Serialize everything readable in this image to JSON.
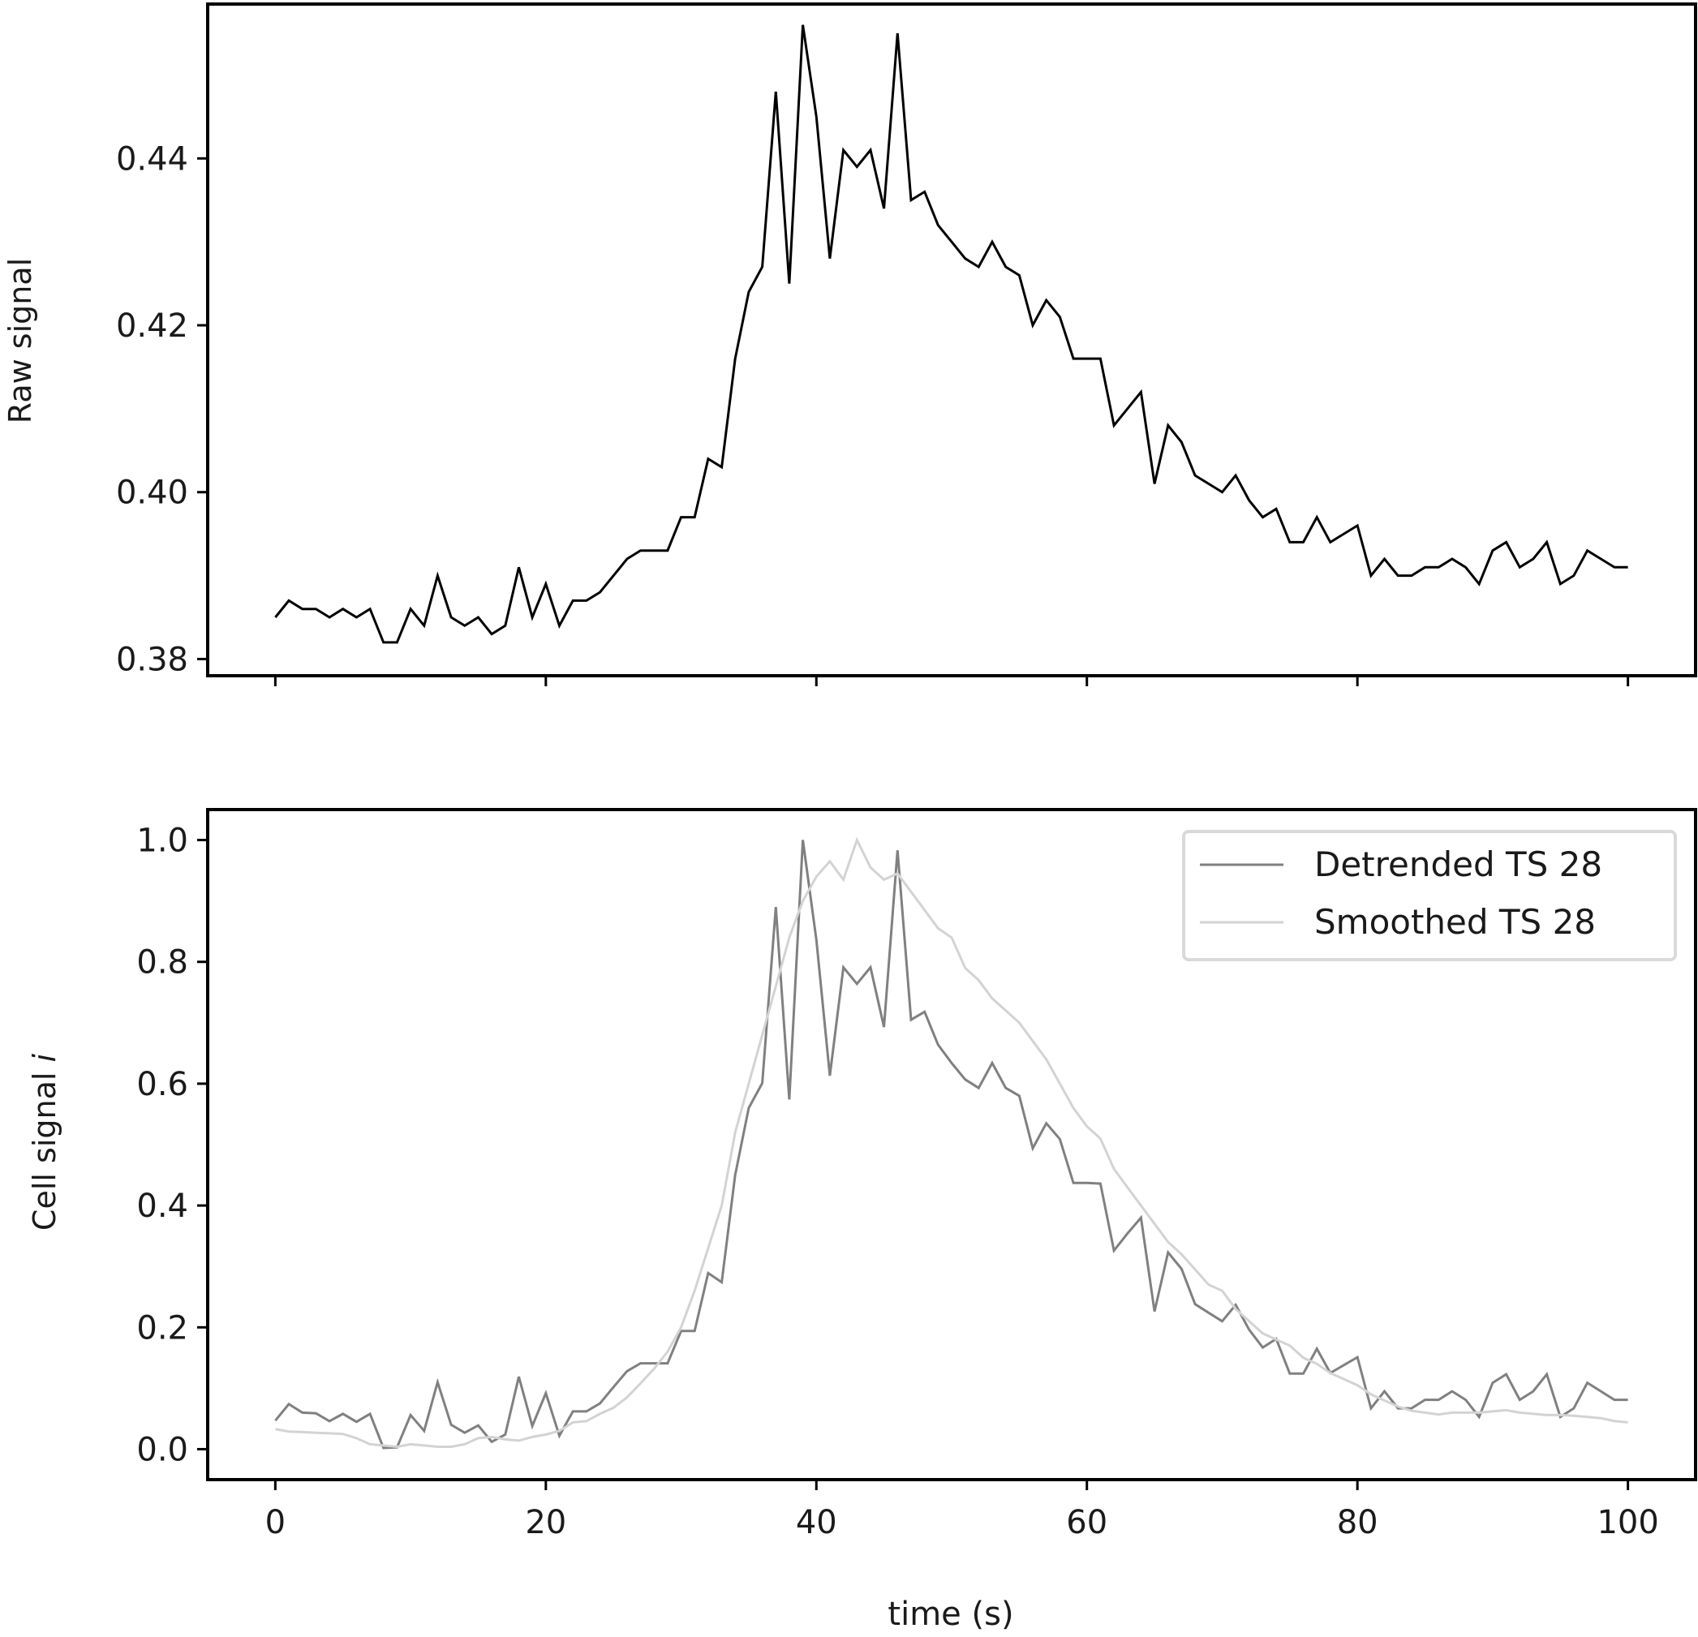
{
  "chart_data": [
    {
      "type": "line",
      "xlabel": "",
      "ylabel": "Raw signal",
      "xlim": [
        -5,
        105
      ],
      "ylim": [
        0.378,
        0.4585
      ],
      "xticks": [
        0,
        20,
        40,
        60,
        80,
        100
      ],
      "show_xticklabels": false,
      "yticks": [
        0.38,
        0.4,
        0.42,
        0.44
      ],
      "ytick_labels": [
        "0.38",
        "0.40",
        "0.42",
        "0.44"
      ],
      "grid": false,
      "series": [
        {
          "color": "#000000",
          "x": [
            0,
            1,
            2,
            3,
            4,
            5,
            6,
            7,
            8,
            9,
            10,
            11,
            12,
            13,
            14,
            15,
            16,
            17,
            18,
            19,
            20,
            21,
            22,
            23,
            24,
            25,
            26,
            27,
            28,
            29,
            30,
            31,
            32,
            33,
            34,
            35,
            36,
            37,
            38,
            39,
            40,
            41,
            42,
            43,
            44,
            45,
            46,
            47,
            48,
            49,
            50,
            51,
            52,
            53,
            54,
            55,
            56,
            57,
            58,
            59,
            60,
            61,
            62,
            63,
            64,
            65,
            66,
            67,
            68,
            69,
            70,
            71,
            72,
            73,
            74,
            75,
            76,
            77,
            78,
            79,
            80,
            81,
            82,
            83,
            84,
            85,
            86,
            87,
            88,
            89,
            90,
            91,
            92,
            93,
            94,
            95,
            96,
            97,
            98,
            99,
            100
          ],
          "values": [
            0.385,
            0.387,
            0.386,
            0.386,
            0.385,
            0.386,
            0.385,
            0.386,
            0.382,
            0.382,
            0.386,
            0.384,
            0.39,
            0.385,
            0.384,
            0.385,
            0.383,
            0.384,
            0.391,
            0.385,
            0.389,
            0.384,
            0.387,
            0.387,
            0.388,
            0.39,
            0.392,
            0.393,
            0.393,
            0.393,
            0.397,
            0.397,
            0.404,
            0.403,
            0.416,
            0.424,
            0.427,
            0.448,
            0.425,
            0.456,
            0.445,
            0.428,
            0.441,
            0.439,
            0.441,
            0.434,
            0.455,
            0.435,
            0.436,
            0.432,
            0.43,
            0.428,
            0.427,
            0.43,
            0.427,
            0.426,
            0.42,
            0.423,
            0.421,
            0.416,
            0.416,
            0.416,
            0.408,
            0.41,
            0.412,
            0.401,
            0.408,
            0.406,
            0.402,
            0.401,
            0.4,
            0.402,
            0.399,
            0.397,
            0.398,
            0.394,
            0.394,
            0.397,
            0.394,
            0.395,
            0.396,
            0.39,
            0.392,
            0.39,
            0.39,
            0.391,
            0.391,
            0.392,
            0.391,
            0.389,
            0.393,
            0.394,
            0.391,
            0.392,
            0.394,
            0.389,
            0.39,
            0.393,
            0.392,
            0.391,
            0.391
          ]
        }
      ]
    },
    {
      "type": "line",
      "xlabel": "time (s)",
      "ylabel": "Cell signal",
      "ylabel_italic_suffix": "i",
      "xlim": [
        -5,
        105
      ],
      "ylim": [
        -0.05,
        1.05
      ],
      "xticks": [
        0,
        20,
        40,
        60,
        80,
        100
      ],
      "xtick_labels": [
        "0",
        "20",
        "40",
        "60",
        "80",
        "100"
      ],
      "yticks": [
        0.0,
        0.2,
        0.4,
        0.6,
        0.8,
        1.0
      ],
      "ytick_labels": [
        "0.0",
        "0.2",
        "0.4",
        "0.6",
        "0.8",
        "1.0"
      ],
      "grid": false,
      "legend_position": "top-right",
      "series": [
        {
          "name": "Detrended TS 28",
          "color": "#808080",
          "x": [
            0,
            1,
            2,
            3,
            4,
            5,
            6,
            7,
            8,
            9,
            10,
            11,
            12,
            13,
            14,
            15,
            16,
            17,
            18,
            19,
            20,
            21,
            22,
            23,
            24,
            25,
            26,
            27,
            28,
            29,
            30,
            31,
            32,
            33,
            34,
            35,
            36,
            37,
            38,
            39,
            40,
            41,
            42,
            43,
            44,
            45,
            46,
            47,
            48,
            49,
            50,
            51,
            52,
            53,
            54,
            55,
            56,
            57,
            58,
            59,
            60,
            61,
            62,
            63,
            64,
            65,
            66,
            67,
            68,
            69,
            70,
            71,
            72,
            73,
            74,
            75,
            76,
            77,
            78,
            79,
            80,
            81,
            82,
            83,
            84,
            85,
            86,
            87,
            88,
            89,
            90,
            91,
            92,
            93,
            94,
            95,
            96,
            97,
            98,
            99,
            100
          ],
          "values": [
            0.047,
            0.074,
            0.06,
            0.059,
            0.046,
            0.058,
            0.045,
            0.058,
            0.002,
            0.003,
            0.056,
            0.03,
            0.11,
            0.04,
            0.027,
            0.039,
            0.012,
            0.024,
            0.119,
            0.038,
            0.092,
            0.022,
            0.062,
            0.062,
            0.075,
            0.102,
            0.128,
            0.141,
            0.141,
            0.141,
            0.194,
            0.194,
            0.289,
            0.274,
            0.45,
            0.56,
            0.601,
            0.89,
            0.574,
            1.0,
            0.836,
            0.613,
            0.791,
            0.764,
            0.791,
            0.693,
            0.983,
            0.705,
            0.718,
            0.664,
            0.634,
            0.607,
            0.593,
            0.634,
            0.593,
            0.58,
            0.494,
            0.535,
            0.509,
            0.437,
            0.437,
            0.436,
            0.326,
            0.354,
            0.38,
            0.226,
            0.323,
            0.296,
            0.238,
            0.224,
            0.21,
            0.237,
            0.196,
            0.167,
            0.181,
            0.124,
            0.124,
            0.165,
            0.125,
            0.138,
            0.151,
            0.067,
            0.095,
            0.067,
            0.067,
            0.081,
            0.081,
            0.095,
            0.081,
            0.053,
            0.109,
            0.123,
            0.081,
            0.095,
            0.123,
            0.053,
            0.067,
            0.109,
            0.095,
            0.081,
            0.081
          ]
        },
        {
          "name": "Smoothed TS 28",
          "color": "#d3d3d3",
          "x": [
            0,
            1,
            2,
            3,
            4,
            5,
            6,
            7,
            8,
            9,
            10,
            11,
            12,
            13,
            14,
            15,
            16,
            17,
            18,
            19,
            20,
            21,
            22,
            23,
            24,
            25,
            26,
            27,
            28,
            29,
            30,
            31,
            32,
            33,
            34,
            35,
            36,
            37,
            38,
            39,
            40,
            41,
            42,
            43,
            44,
            45,
            46,
            47,
            48,
            49,
            50,
            51,
            52,
            53,
            54,
            55,
            56,
            57,
            58,
            59,
            60,
            61,
            62,
            63,
            64,
            65,
            66,
            67,
            68,
            69,
            70,
            71,
            72,
            73,
            74,
            75,
            76,
            77,
            78,
            79,
            80,
            81,
            82,
            83,
            84,
            85,
            86,
            87,
            88,
            89,
            90,
            91,
            92,
            93,
            94,
            95,
            96,
            97,
            98,
            99,
            100
          ],
          "values": [
            0.033,
            0.029,
            0.028,
            0.027,
            0.026,
            0.025,
            0.018,
            0.008,
            0.006,
            0.004,
            0.008,
            0.006,
            0.004,
            0.004,
            0.008,
            0.018,
            0.02,
            0.016,
            0.014,
            0.02,
            0.024,
            0.03,
            0.044,
            0.046,
            0.058,
            0.068,
            0.085,
            0.108,
            0.132,
            0.16,
            0.2,
            0.26,
            0.33,
            0.4,
            0.52,
            0.6,
            0.68,
            0.76,
            0.84,
            0.9,
            0.94,
            0.965,
            0.935,
            1.0,
            0.955,
            0.935,
            0.945,
            0.915,
            0.885,
            0.855,
            0.84,
            0.79,
            0.77,
            0.74,
            0.72,
            0.7,
            0.67,
            0.64,
            0.6,
            0.56,
            0.53,
            0.51,
            0.46,
            0.43,
            0.4,
            0.37,
            0.34,
            0.32,
            0.295,
            0.27,
            0.26,
            0.23,
            0.21,
            0.19,
            0.18,
            0.17,
            0.15,
            0.14,
            0.125,
            0.115,
            0.105,
            0.09,
            0.08,
            0.07,
            0.063,
            0.06,
            0.057,
            0.06,
            0.06,
            0.06,
            0.062,
            0.064,
            0.06,
            0.058,
            0.056,
            0.056,
            0.055,
            0.053,
            0.051,
            0.046,
            0.044
          ]
        }
      ]
    }
  ]
}
